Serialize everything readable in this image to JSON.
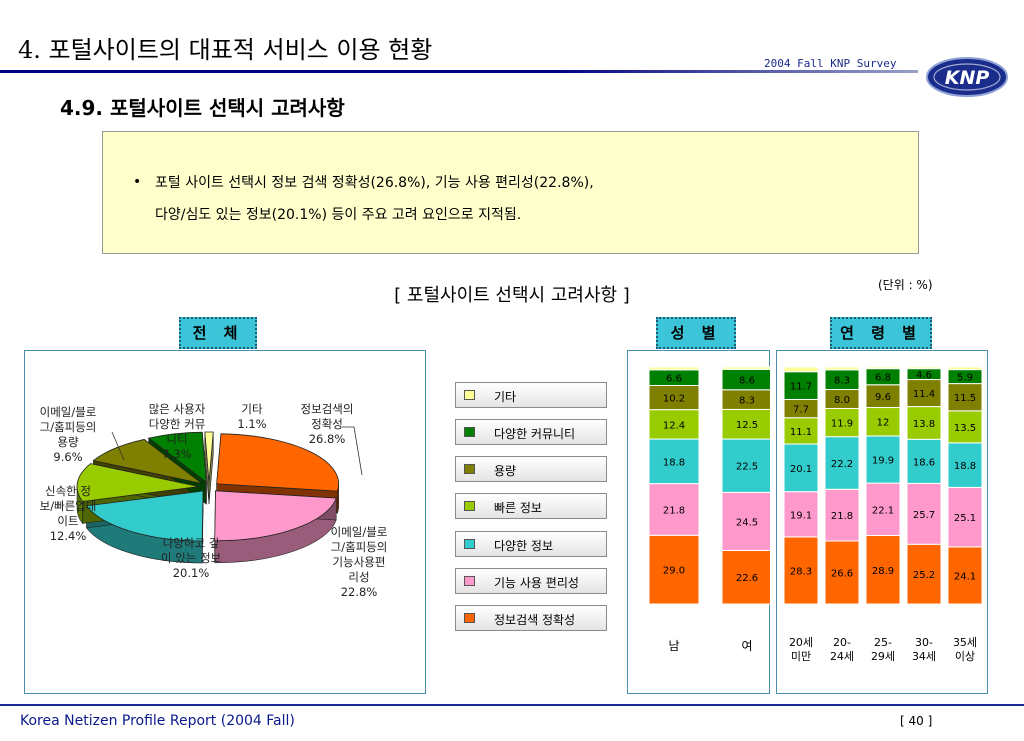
{
  "header": {
    "page_title": "4. 포털사이트의 대표적 서비스 이용 현황",
    "survey_label": "2004 Fall KNP Survey",
    "logo_text": "KNP",
    "section_title": "4.9.  포털사이트 선택시 고려사항"
  },
  "summary": {
    "bullet": "•",
    "line1": "포털 사이트 선택시 정보 검색 정확성(26.8%), 기능 사용 편리성(22.8%),",
    "line2": "다양/심도 있는 정보(20.1%) 등이 주요 고려 요인으로 지적됨."
  },
  "chart_title": "[ 포털사이트 선택시 고려사항 ]",
  "unit": "(단위 : %)",
  "sections": {
    "total": "전 체",
    "gender": "성 별",
    "age": "연 령 별"
  },
  "colors": {
    "정보검색 정확성": "#ff6600",
    "기능 사용 편리성": "#ff99cc",
    "다양한 정보": "#33cccc",
    "빠른 정보": "#99cc00",
    "용량": "#808000",
    "다양한 커뮤니티": "#008000",
    "기타": "#ffff99"
  },
  "chart_data": [
    {
      "type": "pie",
      "categories": [
        "정보검색 정확성",
        "이메일/블로그/홈피등의 기능사용편리성",
        "다양하고 깊이 있는 정보",
        "신속한 정보/빠른업데이트",
        "이메일/블로그/홈피등의 용량",
        "많은 사용자 다양한 커뮤니티",
        "기타"
      ],
      "values": [
        26.8,
        22.8,
        20.1,
        12.4,
        9.6,
        7.3,
        1.1
      ],
      "labels": [
        [
          "정보검색의",
          "정확성",
          "26.8%"
        ],
        [
          "이메일/블로",
          "그/홈피등의",
          "기능사용편",
          "리성",
          "22.8%"
        ],
        [
          "다양하고 깊",
          "이 있는 정보",
          "20.1%"
        ],
        [
          "신속한 정",
          "보/빠른업데",
          "이트",
          "12.4%"
        ],
        [
          "이메일/블로",
          "그/홈피등의",
          "용량",
          "9.6%"
        ],
        [
          "많은 사용자",
          "다양한 커뮤",
          "니티",
          "7.3%"
        ],
        [
          "기타",
          "1.1%"
        ]
      ]
    },
    {
      "type": "bar",
      "stacked": true,
      "categories": [
        "남",
        "여"
      ],
      "series": [
        {
          "name": "정보검색 정확성",
          "values": [
            29.0,
            22.6
          ]
        },
        {
          "name": "기능 사용 편리성",
          "values": [
            21.8,
            24.5
          ]
        },
        {
          "name": "다양한 정보",
          "values": [
            18.8,
            22.5
          ]
        },
        {
          "name": "빠른 정보",
          "values": [
            12.4,
            12.5
          ]
        },
        {
          "name": "용량",
          "values": [
            10.2,
            8.3
          ]
        },
        {
          "name": "다양한 커뮤니티",
          "values": [
            6.6,
            8.6
          ]
        },
        {
          "name": "기타",
          "values": [
            1.2,
            1.0
          ]
        }
      ],
      "ylim": [
        0,
        100
      ]
    },
    {
      "type": "bar",
      "stacked": true,
      "categories": [
        "20세 미만",
        "20- 24세",
        "25- 29세",
        "30- 34세",
        "35세 이상"
      ],
      "category_lines": [
        [
          "20세",
          "미만"
        ],
        [
          "20-",
          "24세"
        ],
        [
          "25-",
          "29세"
        ],
        [
          "30-",
          "34세"
        ],
        [
          "35세",
          "이상"
        ]
      ],
      "series": [
        {
          "name": "정보검색 정확성",
          "values": [
            28.3,
            26.6,
            28.9,
            25.2,
            24.1
          ]
        },
        {
          "name": "기능 사용 편리성",
          "values": [
            19.1,
            21.8,
            22.1,
            25.7,
            25.1
          ]
        },
        {
          "name": "다양한 정보",
          "values": [
            20.1,
            22.2,
            19.9,
            18.6,
            18.8
          ]
        },
        {
          "name": "빠른 정보",
          "values": [
            11.1,
            11.9,
            12,
            13.8,
            13.5
          ]
        },
        {
          "name": "용량",
          "values": [
            7.7,
            8.0,
            9.6,
            11.4,
            11.5
          ]
        },
        {
          "name": "다양한 커뮤니티",
          "values": [
            11.7,
            8.3,
            6.8,
            4.6,
            5.9
          ]
        },
        {
          "name": "기타",
          "values": [
            2.0,
            1.2,
            0.7,
            0.7,
            1.1
          ]
        }
      ],
      "ylim": [
        0,
        100
      ]
    }
  ],
  "legend": [
    "기타",
    "다양한 커뮤니티",
    "용량",
    "빠른 정보",
    "다양한 정보",
    "기능 사용 편리성",
    "정보검색 정확성"
  ],
  "footer": {
    "left": "Korea Netizen Profile Report (2004 Fall)",
    "page": "[ 40 ]"
  }
}
